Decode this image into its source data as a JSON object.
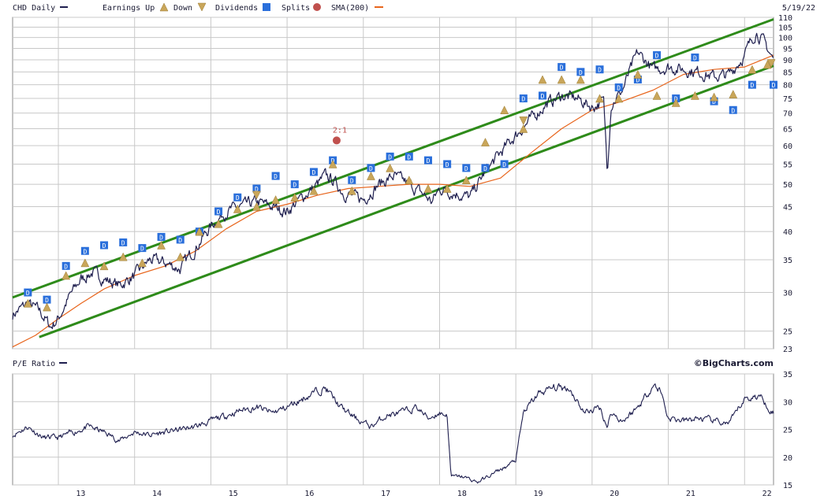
{
  "header": {
    "symbol_label": "CHD Daily",
    "earnings_up_label": "Earnings Up",
    "down_label": "Down",
    "dividends_label": "Dividends",
    "splits_label": "Splits",
    "sma_label": "SMA(200)",
    "date_label": "5/19/22",
    "pe_label": "P/E Ratio",
    "brand": "©BigCharts.com"
  },
  "colors": {
    "price_line": "#1f1f4f",
    "sma_line": "#e8651c",
    "channel_line": "#2e8b1a",
    "dividend_marker": "#2a6fdb",
    "earnings_marker": "#c9a65a",
    "split_marker": "#c0504d"
  },
  "chart_data": [
    {
      "type": "line",
      "title": "CHD Daily",
      "scale": "log",
      "ylim": [
        23,
        110
      ],
      "y_ticks": [
        23,
        25,
        30,
        35,
        40,
        45,
        50,
        55,
        60,
        65,
        70,
        75,
        80,
        85,
        90,
        95,
        100,
        105,
        110
      ],
      "x_ticks": [
        "13",
        "14",
        "15",
        "16",
        "17",
        "18",
        "19",
        "20",
        "21",
        "22"
      ],
      "x_range": [
        12.4,
        22.38
      ],
      "series": [
        {
          "name": "CHD Daily",
          "x": [
            12.4,
            12.6,
            12.75,
            12.9,
            13.0,
            13.15,
            13.3,
            13.45,
            13.6,
            13.8,
            14.0,
            14.2,
            14.4,
            14.6,
            14.8,
            15.0,
            15.2,
            15.4,
            15.6,
            15.8,
            16.0,
            16.2,
            16.4,
            16.5,
            16.6,
            16.75,
            16.9,
            17.0,
            17.2,
            17.4,
            17.6,
            17.8,
            17.9,
            18.0,
            18.2,
            18.4,
            18.6,
            18.8,
            19.0,
            19.2,
            19.4,
            19.6,
            19.8,
            20.0,
            20.15,
            20.2,
            20.25,
            20.4,
            20.6,
            20.8,
            21.0,
            21.2,
            21.4,
            21.6,
            21.8,
            22.0,
            22.15,
            22.25,
            22.38
          ],
          "values": [
            27,
            28.5,
            27.5,
            25.5,
            26.5,
            29.5,
            32,
            33,
            32,
            31,
            32.5,
            35,
            34.5,
            33.5,
            37,
            41,
            44,
            45,
            46,
            45,
            44,
            47,
            50,
            52,
            51,
            48,
            47,
            46.5,
            50,
            52,
            50,
            47.5,
            46,
            49,
            48,
            47,
            53,
            58,
            63,
            68,
            73,
            76,
            75,
            72,
            74,
            53,
            73,
            78,
            93,
            86,
            87,
            86,
            85,
            83,
            84,
            92,
            103,
            98,
            90
          ]
        },
        {
          "name": "SMA(200)",
          "x": [
            12.4,
            12.7,
            13.0,
            13.3,
            13.6,
            14.0,
            14.4,
            14.8,
            15.2,
            15.6,
            16.0,
            16.4,
            16.8,
            17.2,
            17.6,
            18.0,
            18.4,
            18.8,
            19.2,
            19.6,
            20.0,
            20.4,
            20.8,
            21.2,
            21.6,
            22.0,
            22.38
          ],
          "values": [
            23.2,
            24.5,
            26.5,
            28.5,
            30.5,
            32.5,
            34,
            36.5,
            40.5,
            44,
            45.5,
            47.5,
            49,
            49.5,
            50,
            50,
            49.5,
            51.5,
            58,
            65,
            71,
            74,
            78,
            84,
            86,
            87,
            92
          ]
        },
        {
          "name": "Channel upper",
          "x": [
            12.4,
            22.38
          ],
          "values": [
            29.3,
            109
          ]
        },
        {
          "name": "Channel lower",
          "x": [
            12.75,
            22.38
          ],
          "values": [
            24.3,
            87.5
          ]
        }
      ],
      "markers": {
        "dividends": [
          [
            12.6,
            30
          ],
          [
            12.85,
            29
          ],
          [
            13.1,
            34
          ],
          [
            13.35,
            36.5
          ],
          [
            13.6,
            37.5
          ],
          [
            13.85,
            38
          ],
          [
            14.1,
            37
          ],
          [
            14.35,
            39
          ],
          [
            14.6,
            38.5
          ],
          [
            14.85,
            40
          ],
          [
            15.1,
            44
          ],
          [
            15.35,
            47
          ],
          [
            15.6,
            49
          ],
          [
            15.85,
            52
          ],
          [
            16.1,
            50
          ],
          [
            16.35,
            53
          ],
          [
            16.6,
            56
          ],
          [
            16.85,
            51
          ],
          [
            17.1,
            54
          ],
          [
            17.35,
            57
          ],
          [
            17.6,
            57
          ],
          [
            17.85,
            56
          ],
          [
            18.1,
            55
          ],
          [
            18.35,
            54
          ],
          [
            18.6,
            54
          ],
          [
            18.85,
            55
          ],
          [
            19.1,
            75
          ],
          [
            19.35,
            76
          ],
          [
            19.6,
            87
          ],
          [
            19.85,
            85
          ],
          [
            20.1,
            86
          ],
          [
            20.35,
            79
          ],
          [
            20.6,
            82
          ],
          [
            20.85,
            92
          ],
          [
            21.1,
            75
          ],
          [
            21.35,
            91
          ],
          [
            21.6,
            74
          ],
          [
            21.85,
            71
          ],
          [
            22.1,
            80
          ],
          [
            22.38,
            80
          ]
        ],
        "earnings_up": [
          [
            12.6,
            28.5
          ],
          [
            12.85,
            28
          ],
          [
            13.1,
            32.5
          ],
          [
            13.35,
            34.5
          ],
          [
            13.6,
            34
          ],
          [
            13.85,
            35.5
          ],
          [
            14.1,
            34.5
          ],
          [
            14.35,
            37.5
          ],
          [
            14.6,
            35.5
          ],
          [
            14.85,
            40
          ],
          [
            15.1,
            41.5
          ],
          [
            15.35,
            44.5
          ],
          [
            15.6,
            45
          ],
          [
            15.85,
            46.5
          ],
          [
            16.1,
            47
          ],
          [
            16.35,
            48.5
          ],
          [
            16.6,
            55
          ],
          [
            16.85,
            48.5
          ],
          [
            17.1,
            52
          ],
          [
            17.35,
            54
          ],
          [
            17.6,
            51
          ],
          [
            17.85,
            49
          ],
          [
            18.1,
            49
          ],
          [
            18.35,
            51
          ],
          [
            18.6,
            61
          ],
          [
            18.85,
            71
          ],
          [
            19.1,
            65
          ],
          [
            19.35,
            82
          ],
          [
            19.6,
            82
          ],
          [
            19.85,
            82
          ],
          [
            20.1,
            75
          ],
          [
            20.35,
            75
          ],
          [
            20.6,
            84
          ],
          [
            20.85,
            76
          ],
          [
            21.1,
            73.5
          ],
          [
            21.35,
            76
          ],
          [
            21.6,
            75.5
          ],
          [
            21.85,
            76.5
          ],
          [
            22.1,
            86
          ],
          [
            22.3,
            88
          ]
        ],
        "earnings_down": [
          [
            15.6,
            47.5
          ],
          [
            19.1,
            67.5
          ],
          [
            22.35,
            88.5
          ]
        ],
        "splits": [
          [
            16.65,
            61.5
          ]
        ],
        "split_label": "2:1"
      }
    },
    {
      "type": "line",
      "title": "P/E Ratio",
      "ylim": [
        15,
        35
      ],
      "y_ticks": [
        15,
        20,
        25,
        30,
        35
      ],
      "x_ticks": [
        "13",
        "14",
        "15",
        "16",
        "17",
        "18",
        "19",
        "20",
        "21",
        "22"
      ],
      "x_range": [
        12.4,
        22.38
      ],
      "series": [
        {
          "name": "P/E Ratio",
          "x": [
            12.4,
            12.6,
            12.8,
            13.0,
            13.2,
            13.4,
            13.6,
            13.8,
            14.0,
            14.2,
            14.4,
            14.6,
            14.8,
            15.0,
            15.2,
            15.4,
            15.6,
            15.8,
            16.0,
            16.2,
            16.4,
            16.5,
            16.7,
            16.9,
            17.1,
            17.3,
            17.5,
            17.7,
            17.85,
            18.0,
            18.1,
            18.15,
            18.3,
            18.5,
            18.7,
            18.9,
            19.0,
            19.1,
            19.3,
            19.5,
            19.7,
            19.9,
            20.1,
            20.2,
            20.25,
            20.4,
            20.6,
            20.8,
            20.9,
            21.0,
            21.2,
            21.4,
            21.6,
            21.8,
            22.0,
            22.2,
            22.38
          ],
          "values": [
            24,
            25.5,
            23.5,
            23.5,
            24.5,
            25.5,
            24.5,
            23,
            24.5,
            24,
            24.5,
            25,
            25.5,
            26.5,
            27.5,
            28.5,
            29,
            28,
            29,
            30.5,
            32,
            32.5,
            29,
            27,
            25.5,
            27.5,
            28,
            29,
            27,
            28,
            27.5,
            16.5,
            16.5,
            15.5,
            17,
            18.5,
            19.5,
            28,
            31.5,
            32.5,
            32.5,
            28,
            29,
            25.5,
            28,
            26.5,
            29,
            33,
            32,
            27,
            26.5,
            27,
            26.5,
            26,
            30.5,
            31,
            28
          ]
        }
      ]
    }
  ]
}
